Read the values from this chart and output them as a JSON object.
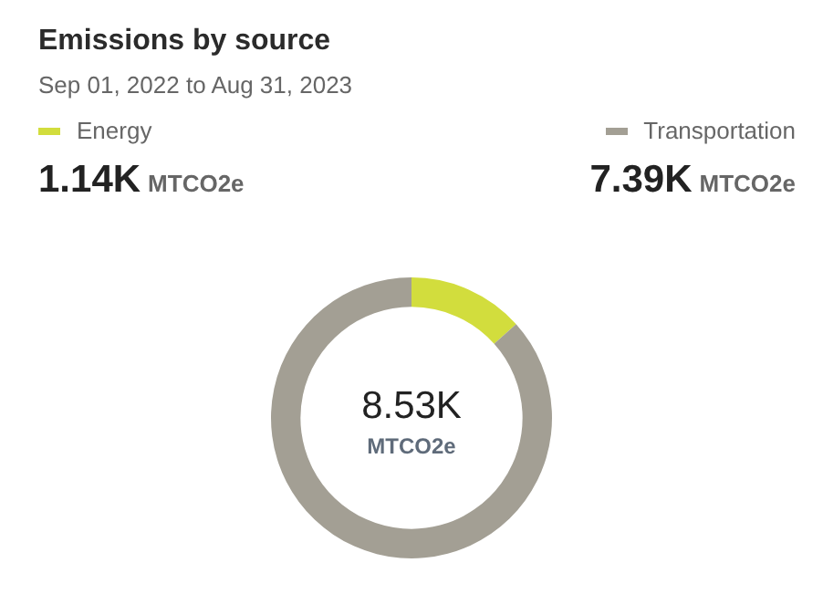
{
  "chart_data": {
    "type": "donut",
    "title": "Emissions by source",
    "subtitle": "Sep 01, 2022 to Aug 31, 2023",
    "categories": [
      "Energy",
      "Transportation"
    ],
    "values": [
      1.14,
      7.39
    ],
    "value_labels": [
      "1.14K",
      "7.39K"
    ],
    "colors": [
      "#d2dd3d",
      "#a39f94"
    ],
    "totals": [
      "8.53K"
    ],
    "annotations": [
      "MTCO2e"
    ],
    "legend": "top"
  }
}
